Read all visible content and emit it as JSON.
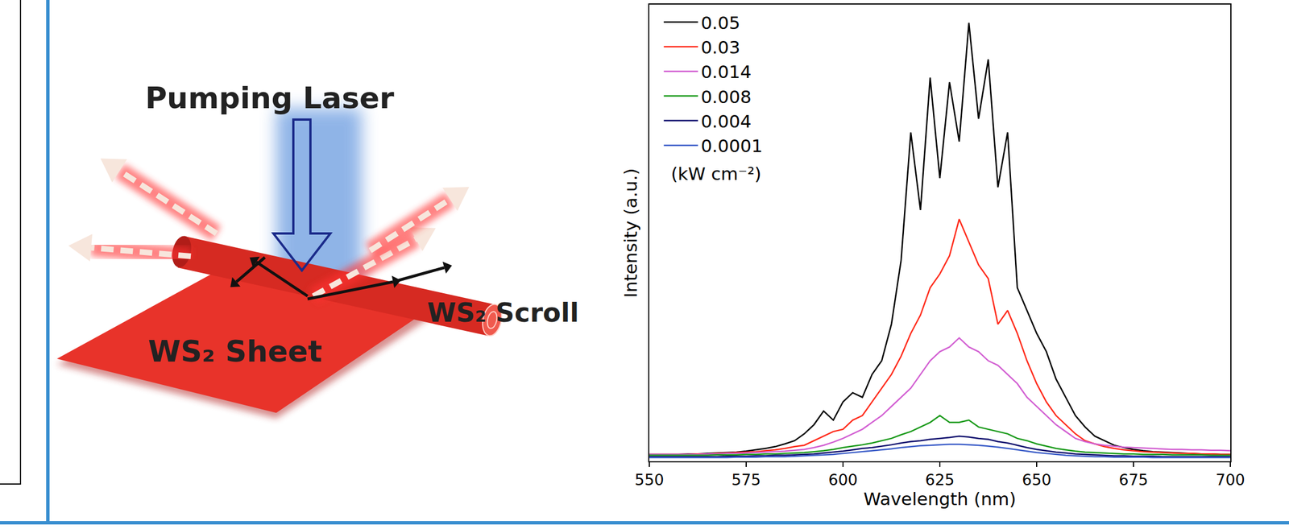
{
  "chart_data": {
    "type": "line",
    "x_label": "Wavelength (nm)",
    "y_label": "Intensity (a.u.)",
    "x": [
      550,
      552.5,
      555,
      557.5,
      560,
      562.5,
      565,
      567.5,
      570,
      572.5,
      575,
      577.5,
      580,
      582.5,
      585,
      587.5,
      590,
      592.5,
      595,
      597.5,
      600,
      602.5,
      605,
      607.5,
      610,
      612.5,
      615,
      617.5,
      620,
      622.5,
      625,
      627.5,
      630,
      632.5,
      635,
      637.5,
      640,
      642.5,
      645,
      647.5,
      650,
      652.5,
      655,
      657.5,
      660,
      662.5,
      665,
      667.5,
      670,
      672.5,
      675,
      677.5,
      680,
      682.5,
      685,
      687.5,
      690,
      692.5,
      695,
      697.5,
      700
    ],
    "series": [
      {
        "name": "0.05",
        "color": "#000000",
        "values": [
          1.5,
          1.5,
          1.5,
          1.5,
          1.6,
          1.6,
          1.7,
          1.8,
          1.9,
          2,
          2.2,
          2.5,
          2.8,
          3.2,
          3.8,
          4.5,
          6,
          8,
          11,
          9,
          13,
          15,
          14,
          19,
          22,
          30,
          44,
          72,
          55,
          84,
          62,
          83,
          70,
          96,
          75,
          88,
          60,
          72,
          38,
          33,
          28,
          24,
          18,
          14,
          10,
          7.5,
          5.5,
          4.5,
          3.5,
          3,
          2.6,
          2.3,
          2.1,
          2,
          1.9,
          1.8,
          1.7,
          1.6,
          1.6,
          1.5,
          1.5
        ]
      },
      {
        "name": "0.03",
        "color": "#ff2a1a",
        "values": [
          1.5,
          1.5,
          1.5,
          1.5,
          1.5,
          1.6,
          1.6,
          1.7,
          1.8,
          1.9,
          2,
          2.1,
          2.3,
          2.5,
          2.8,
          3.2,
          3.5,
          4.5,
          5.5,
          6.5,
          7,
          9,
          10,
          13,
          16,
          19,
          23,
          28,
          32,
          38,
          41,
          45,
          53,
          48,
          43,
          40,
          30,
          33,
          28,
          22,
          17,
          13,
          10,
          8,
          6,
          4.5,
          3.8,
          3.2,
          2.8,
          2.5,
          2.3,
          2.1,
          2,
          1.9,
          1.8,
          1.7,
          1.7,
          1.6,
          1.6,
          1.5,
          1.5
        ]
      },
      {
        "name": "0.014",
        "color": "#d25fd2",
        "values": [
          1.5,
          1.5,
          1.5,
          1.5,
          1.5,
          1.5,
          1.6,
          1.6,
          1.7,
          1.7,
          1.8,
          1.9,
          2,
          2.1,
          2.2,
          2.4,
          2.6,
          3,
          3.5,
          4.2,
          5,
          6,
          7,
          8.5,
          10,
          12,
          14,
          16,
          19,
          22,
          24,
          25,
          27,
          25,
          24,
          22,
          21,
          19,
          17,
          14,
          12,
          10,
          8,
          6.5,
          5,
          4.3,
          3.8,
          3.5,
          3.3,
          3.1,
          3,
          2.9,
          2.8,
          2.7,
          2.6,
          2.6,
          2.5,
          2.5,
          2.4,
          2.4,
          2.3
        ]
      },
      {
        "name": "0.008",
        "color": "#1a9a1a",
        "values": [
          1.3,
          1.3,
          1.3,
          1.3,
          1.3,
          1.3,
          1.3,
          1.4,
          1.4,
          1.4,
          1.5,
          1.5,
          1.6,
          1.6,
          1.7,
          1.8,
          1.9,
          2.1,
          2.3,
          2.6,
          3,
          3.3,
          3.6,
          4,
          4.5,
          5,
          5.8,
          6.5,
          7.5,
          8.5,
          10,
          8.5,
          8.5,
          9,
          7.5,
          7,
          6.5,
          6,
          5,
          4.5,
          3.8,
          3.3,
          2.8,
          2.5,
          2.2,
          2,
          1.9,
          1.8,
          1.7,
          1.6,
          1.6,
          1.5,
          1.5,
          1.5,
          1.4,
          1.4,
          1.4,
          1.4,
          1.3,
          1.3,
          1.3
        ]
      },
      {
        "name": "0.004",
        "color": "#10106e",
        "values": [
          1,
          1,
          1,
          1,
          1,
          1,
          1,
          1,
          1.1,
          1.1,
          1.1,
          1.2,
          1.2,
          1.3,
          1.3,
          1.4,
          1.5,
          1.6,
          1.8,
          2,
          2.2,
          2.5,
          2.8,
          3,
          3.3,
          3.6,
          4,
          4.3,
          4.5,
          4.8,
          5,
          5.2,
          5.5,
          5.3,
          5,
          4.8,
          4.3,
          4,
          3.5,
          3,
          2.6,
          2.3,
          2,
          1.8,
          1.6,
          1.5,
          1.4,
          1.3,
          1.2,
          1.2,
          1.1,
          1.1,
          1.1,
          1,
          1,
          1,
          1,
          1,
          1,
          1,
          1
        ]
      },
      {
        "name": "0.0001",
        "color": "#3a5cc8",
        "values": [
          0.8,
          0.8,
          0.8,
          0.8,
          0.8,
          0.8,
          0.8,
          0.8,
          0.8,
          0.9,
          0.9,
          0.9,
          1,
          1,
          1,
          1.1,
          1.2,
          1.3,
          1.4,
          1.5,
          1.7,
          1.9,
          2.1,
          2.3,
          2.5,
          2.7,
          3,
          3.2,
          3.4,
          3.5,
          3.6,
          3.7,
          3.7,
          3.6,
          3.5,
          3.3,
          3.1,
          2.8,
          2.5,
          2.2,
          1.9,
          1.7,
          1.5,
          1.3,
          1.2,
          1.1,
          1,
          1,
          0.9,
          0.9,
          0.9,
          0.9,
          0.8,
          0.8,
          0.8,
          0.8,
          0.8,
          0.8,
          0.8,
          0.8,
          0.8
        ]
      }
    ],
    "xlim": [
      550,
      700
    ],
    "xticks": [
      550,
      575,
      600,
      625,
      650,
      675,
      700
    ],
    "ylim": [
      0,
      100
    ],
    "tick_labels": "x",
    "legend": "upper left",
    "annotations": [
      {
        "text": "(kW cm⁻²)"
      }
    ]
  },
  "diagram": {
    "labels": [
      "Pumping Laser",
      "WS₂ Sheet",
      "WS₂ Scroll"
    ]
  }
}
